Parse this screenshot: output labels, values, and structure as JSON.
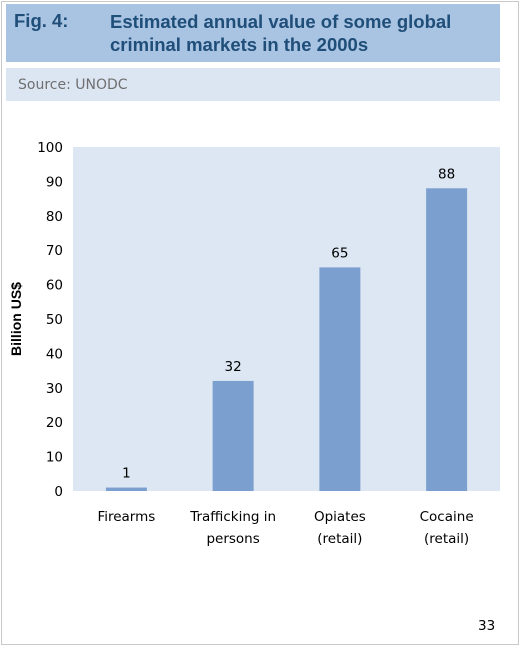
{
  "header": {
    "fig_label": "Fig. 4:",
    "title": "Estimated annual value of some global criminal markets in the 2000s"
  },
  "source": {
    "text": "Source: UNODC"
  },
  "page": {
    "number": "33"
  },
  "colors": {
    "header_band": "#a9c3e2",
    "title_text": "#1f4e79",
    "source_band": "#dce6f3",
    "bar_fill": "#7b9fcf",
    "plot_background": "#dde7f3"
  },
  "chart_data": {
    "type": "bar",
    "title": "Estimated annual value of some global criminal markets in the 2000s",
    "xlabel": "",
    "ylabel": "Billion US$",
    "ylim": [
      0,
      100
    ],
    "yticks": [
      0,
      10,
      20,
      30,
      40,
      50,
      60,
      70,
      80,
      90,
      100
    ],
    "grid": false,
    "legend": "none",
    "categories": [
      [
        "Firearms"
      ],
      [
        "Trafficking in",
        "persons"
      ],
      [
        "Opiates",
        "(retail)"
      ],
      [
        "Cocaine",
        "(retail)"
      ]
    ],
    "values": [
      1,
      32,
      65,
      88
    ],
    "data_labels": [
      "1",
      "32",
      "65",
      "88"
    ]
  }
}
